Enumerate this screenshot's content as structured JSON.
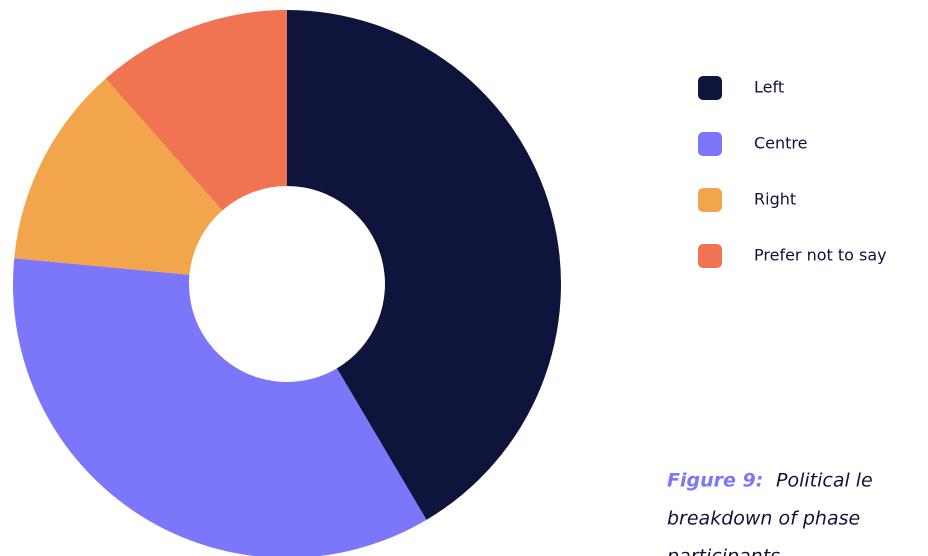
{
  "chart_data": {
    "type": "donut",
    "categories": [
      "Left",
      "Centre",
      "Right",
      "Prefer not to say"
    ],
    "values": [
      41.5,
      35,
      12,
      11.5
    ],
    "colors": [
      "#0f143d",
      "#7b76fa",
      "#f2a54a",
      "#f07352"
    ],
    "caption_label": "Figure 9:",
    "caption_lines": [
      "Political le",
      "breakdown of phase",
      "participants"
    ]
  }
}
